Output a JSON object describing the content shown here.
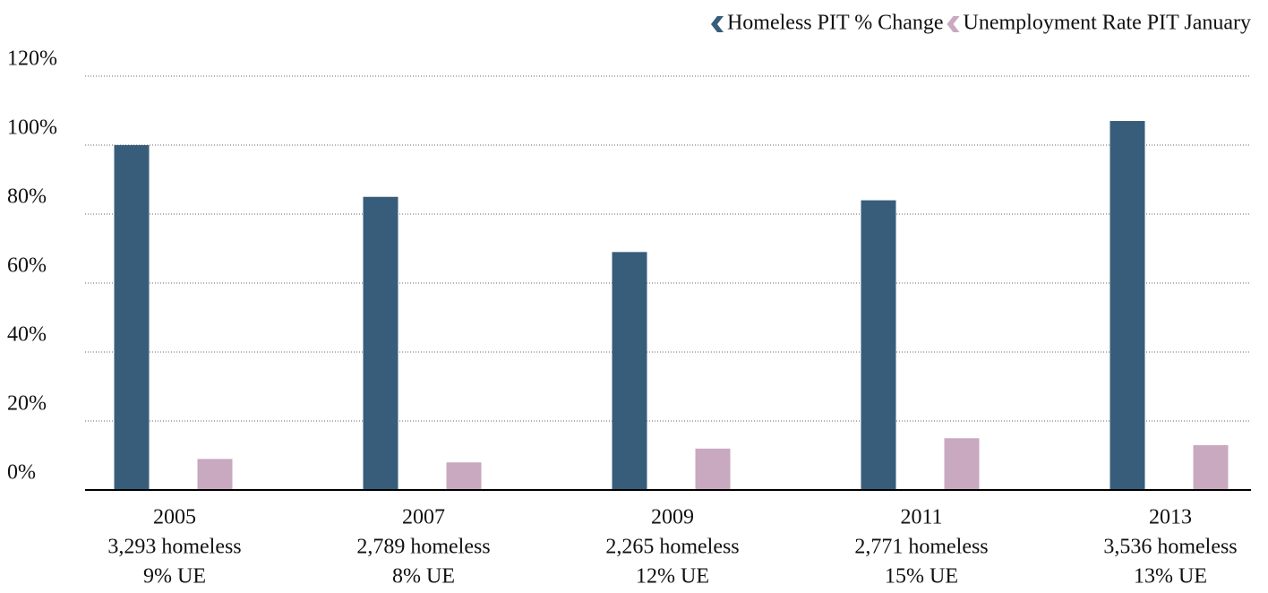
{
  "chart_data": {
    "type": "bar",
    "categories": [
      [
        "2005",
        "3,293 homeless",
        "9% UE"
      ],
      [
        "2007",
        "2,789 homeless",
        "8% UE"
      ],
      [
        "2009",
        "2,265 homeless",
        "12% UE"
      ],
      [
        "2011",
        "2,771 homeless",
        "15% UE"
      ],
      [
        "2013",
        "3,536 homeless",
        "13% UE"
      ]
    ],
    "series": [
      {
        "name": "Homeless PIT % Change",
        "color": "#375d7a",
        "values": [
          100,
          85,
          69,
          84,
          107
        ]
      },
      {
        "name": "Unemployment Rate PIT January",
        "color": "#c8a9bf",
        "values": [
          9,
          8,
          12,
          15,
          13
        ]
      }
    ],
    "ylim": [
      0,
      120
    ],
    "yticks": [
      {
        "value": 0,
        "label": "0%"
      },
      {
        "value": 20,
        "label": "20%"
      },
      {
        "value": 40,
        "label": "40%"
      },
      {
        "value": 60,
        "label": "60%"
      },
      {
        "value": 80,
        "label": "80%"
      },
      {
        "value": 100,
        "label": "100%"
      },
      {
        "value": 120,
        "label": "120%"
      }
    ],
    "grid": true,
    "legend": "top-right"
  }
}
